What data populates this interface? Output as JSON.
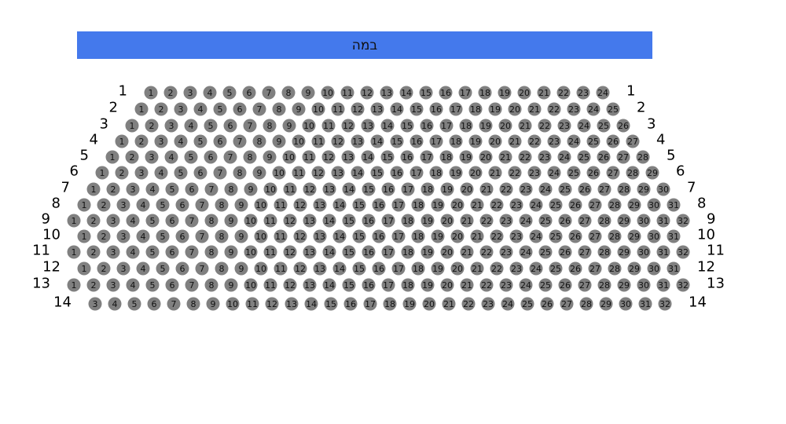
{
  "stage": {
    "label": "במה"
  },
  "seat_color": "#808080",
  "stage_color": "#4479ec",
  "rows": [
    {
      "row": "1",
      "first": 1,
      "last": 24
    },
    {
      "row": "2",
      "first": 1,
      "last": 25
    },
    {
      "row": "3",
      "first": 1,
      "last": 26
    },
    {
      "row": "4",
      "first": 1,
      "last": 27
    },
    {
      "row": "5",
      "first": 1,
      "last": 28
    },
    {
      "row": "6",
      "first": 1,
      "last": 29
    },
    {
      "row": "7",
      "first": 1,
      "last": 30
    },
    {
      "row": "8",
      "first": 1,
      "last": 31
    },
    {
      "row": "9",
      "first": 1,
      "last": 32
    },
    {
      "row": "10",
      "first": 1,
      "last": 31
    },
    {
      "row": "11",
      "first": 1,
      "last": 32
    },
    {
      "row": "12",
      "first": 1,
      "last": 31
    },
    {
      "row": "13",
      "first": 1,
      "last": 32
    },
    {
      "row": "14",
      "first": 3,
      "last": 32
    }
  ]
}
